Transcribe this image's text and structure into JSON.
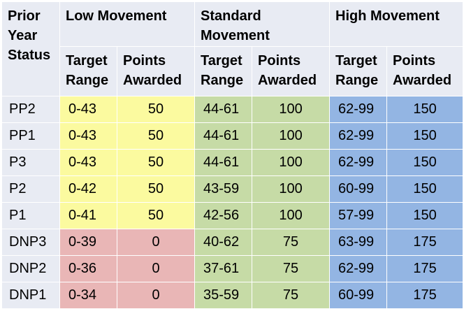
{
  "table": {
    "corner_header": [
      "Prior",
      "Year",
      "Status"
    ],
    "groups": [
      {
        "title": [
          "Low Movement"
        ],
        "sub": [
          [
            "Target",
            "Range"
          ],
          [
            "Points",
            "Awarded"
          ]
        ]
      },
      {
        "title": [
          "Standard",
          "Movement"
        ],
        "sub": [
          [
            "Target",
            "Range"
          ],
          [
            "Points",
            "Awarded"
          ]
        ]
      },
      {
        "title": [
          "High Movement"
        ],
        "sub": [
          [
            "Target",
            "Range"
          ],
          [
            "Points",
            "Awarded"
          ]
        ]
      }
    ],
    "rows": [
      {
        "status": "PP2",
        "low_range": "0-43",
        "low_points": "50",
        "std_range": "44-61",
        "std_points": "100",
        "high_range": "62-99",
        "high_points": "150",
        "low_color": "yellow"
      },
      {
        "status": "PP1",
        "low_range": "0-43",
        "low_points": "50",
        "std_range": "44-61",
        "std_points": "100",
        "high_range": "62-99",
        "high_points": "150",
        "low_color": "yellow"
      },
      {
        "status": "P3",
        "low_range": "0-43",
        "low_points": "50",
        "std_range": "44-61",
        "std_points": "100",
        "high_range": "62-99",
        "high_points": "150",
        "low_color": "yellow"
      },
      {
        "status": "P2",
        "low_range": "0-42",
        "low_points": "50",
        "std_range": "43-59",
        "std_points": "100",
        "high_range": "60-99",
        "high_points": "150",
        "low_color": "yellow"
      },
      {
        "status": "P1",
        "low_range": "0-41",
        "low_points": "50",
        "std_range": "42-56",
        "std_points": "100",
        "high_range": "57-99",
        "high_points": "150",
        "low_color": "yellow"
      },
      {
        "status": "DNP3",
        "low_range": "0-39",
        "low_points": "0",
        "std_range": "40-62",
        "std_points": "75",
        "high_range": "63-99",
        "high_points": "175",
        "low_color": "pink"
      },
      {
        "status": "DNP2",
        "low_range": "0-36",
        "low_points": "0",
        "std_range": "37-61",
        "std_points": "75",
        "high_range": "62-99",
        "high_points": "175",
        "low_color": "pink"
      },
      {
        "status": "DNP1",
        "low_range": "0-34",
        "low_points": "0",
        "std_range": "35-59",
        "std_points": "75",
        "high_range": "60-99",
        "high_points": "175",
        "low_color": "pink"
      }
    ]
  },
  "colors": {
    "header_bg": "#e8ebf3",
    "yellow": "#fbfa9f",
    "green": "#c6dba6",
    "blue": "#93b5e3",
    "pink": "#e9b6b6"
  }
}
